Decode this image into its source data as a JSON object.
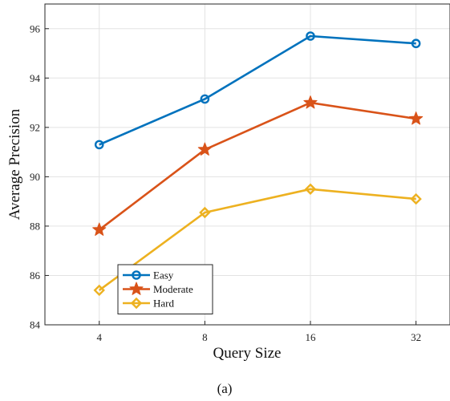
{
  "chart_data": {
    "type": "line",
    "title": "",
    "xlabel": "Query Size",
    "ylabel": "Average Precision",
    "x": [
      4,
      8,
      16,
      32
    ],
    "x_scale": "log2",
    "x_ticks": [
      "4",
      "8",
      "16",
      "32"
    ],
    "xlim": [
      2.8,
      40
    ],
    "ylim": [
      84,
      97
    ],
    "y_ticks": [
      "84",
      "86",
      "88",
      "90",
      "92",
      "94",
      "96"
    ],
    "grid": true,
    "legend_position": "bottom-left",
    "series": [
      {
        "name": "Easy",
        "values": [
          91.3,
          93.15,
          95.7,
          95.4
        ],
        "color": "#0072BD",
        "marker": "circle"
      },
      {
        "name": "Moderate",
        "values": [
          87.85,
          91.1,
          93.0,
          92.35
        ],
        "color": "#D95319",
        "marker": "star"
      },
      {
        "name": "Hard",
        "values": [
          85.4,
          88.55,
          89.5,
          89.1
        ],
        "color": "#EDB120",
        "marker": "diamond"
      }
    ]
  },
  "caption": "(a)"
}
